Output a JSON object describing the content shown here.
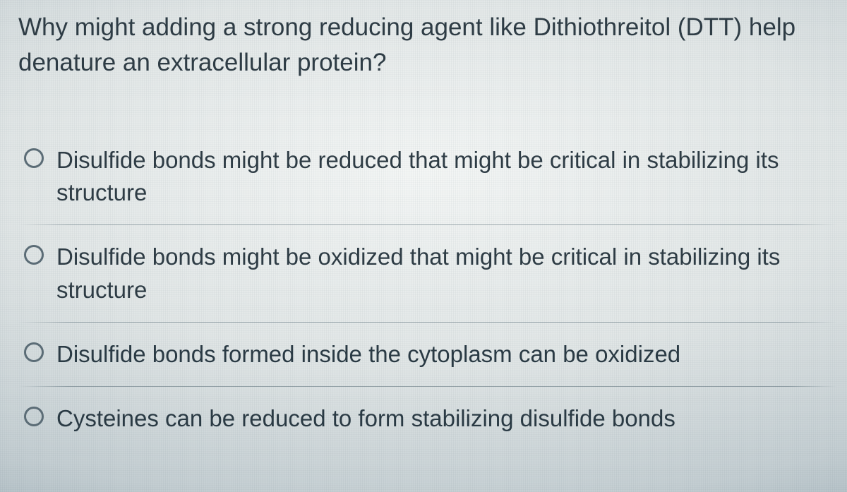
{
  "question": {
    "text": "Why might adding a strong reducing agent like Dithiothreitol (DTT) help denature an extracellular protein?"
  },
  "options": [
    {
      "label": "Disulfide bonds might be reduced that might be critical in stabilizing its structure"
    },
    {
      "label": "Disulfide bonds might be oxidized that might be critical in stabilizing its structure"
    },
    {
      "label": "Disulfide bonds formed inside the cytoplasm can be oxidized"
    },
    {
      "label": "Cysteines can be reduced to form stabilizing disulfide bonds"
    }
  ],
  "style": {
    "radio_border_color": "#5b6c76",
    "text_color": "#2e3c45",
    "divider_color": "#6a7d87",
    "background_gradient": [
      "#f4f6f5",
      "#e1e6e6",
      "#c4ced2",
      "#a0b0b8",
      "#7e939e"
    ],
    "question_fontsize": 35,
    "option_fontsize": 33,
    "font_family": "Segoe UI / Helvetica Neue"
  }
}
